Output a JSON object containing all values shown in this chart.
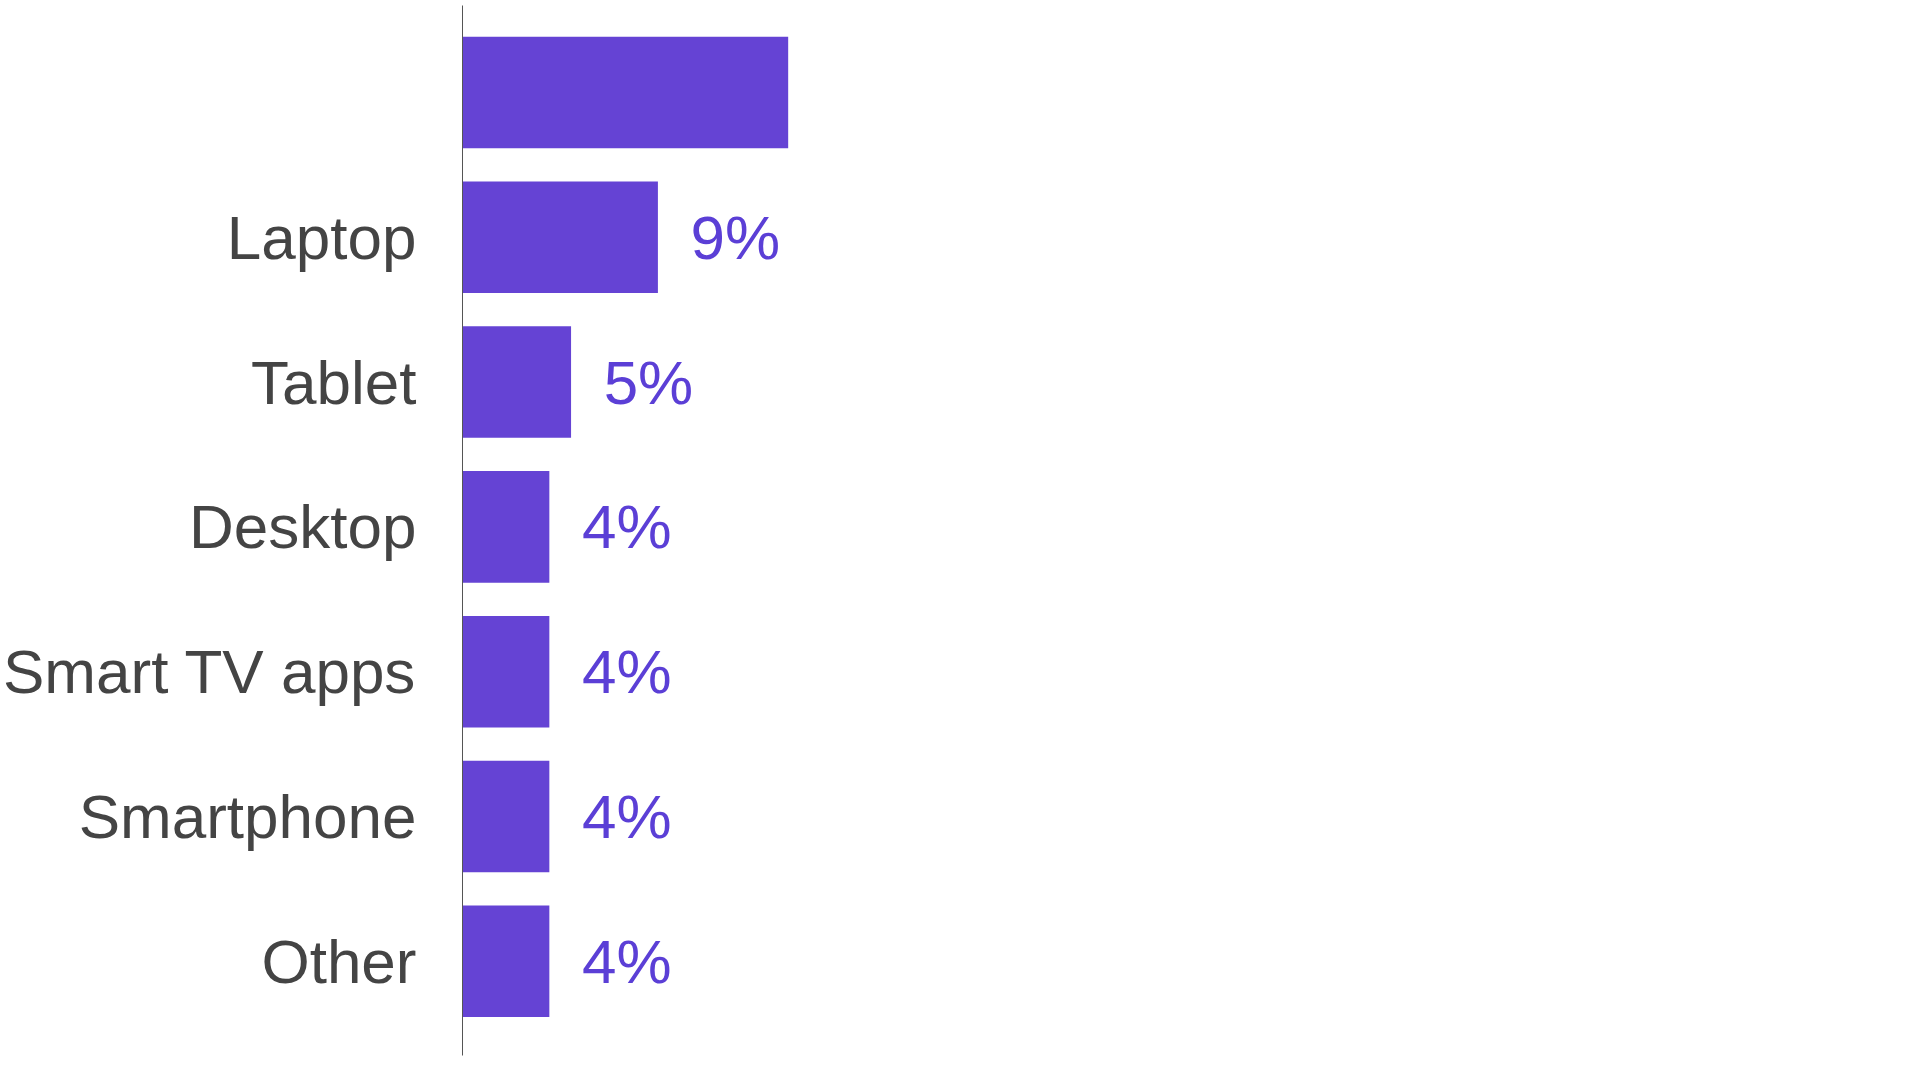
{
  "chart_data": {
    "type": "bar",
    "orientation": "horizontal",
    "categories": [
      null,
      "Laptop",
      "Tablet",
      "Desktop",
      "Smart TV apps",
      "Smartphone",
      "Other"
    ],
    "values": [
      15,
      9,
      5,
      4,
      4,
      4,
      4
    ],
    "value_labels": [
      null,
      "9%",
      "5%",
      "4%",
      "4%",
      "4%",
      "4%"
    ],
    "color": "#6543d4",
    "grid": false,
    "tick_labels": "y"
  }
}
